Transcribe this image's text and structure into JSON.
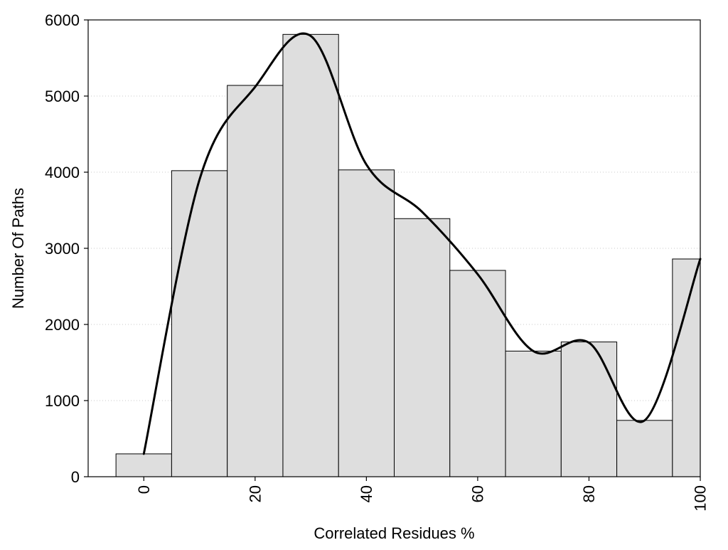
{
  "chart_data": {
    "type": "bar",
    "title": "",
    "xlabel": "Correlated Residues %",
    "ylabel": "Number Of Paths",
    "x": [
      0,
      10,
      20,
      30,
      40,
      50,
      60,
      70,
      80,
      90,
      100
    ],
    "values": [
      300,
      4020,
      5140,
      5810,
      4030,
      3390,
      2710,
      1650,
      1770,
      740,
      2860
    ],
    "bin_width": 10,
    "xlim": [
      -10,
      100
    ],
    "ylim": [
      0,
      6000
    ],
    "xticks": [
      "0",
      "20",
      "40",
      "60",
      "80",
      "100"
    ],
    "xtick_values": [
      0,
      20,
      40,
      60,
      80,
      100
    ],
    "yticks": [
      "0",
      "1000",
      "2000",
      "3000",
      "4000",
      "5000",
      "6000"
    ],
    "ytick_values": [
      0,
      1000,
      2000,
      3000,
      4000,
      5000,
      6000
    ],
    "grid": "horizontal dotted",
    "bar_color": "#dedede",
    "bar_edge_color": "#000000",
    "curve": {
      "type": "smooth line",
      "color": "#000000",
      "x": [
        0,
        10,
        20,
        30,
        40,
        50,
        60,
        70,
        80,
        90,
        100
      ],
      "y": [
        300,
        3900,
        5120,
        5790,
        4100,
        3480,
        2660,
        1650,
        1760,
        740,
        2860
      ]
    }
  }
}
